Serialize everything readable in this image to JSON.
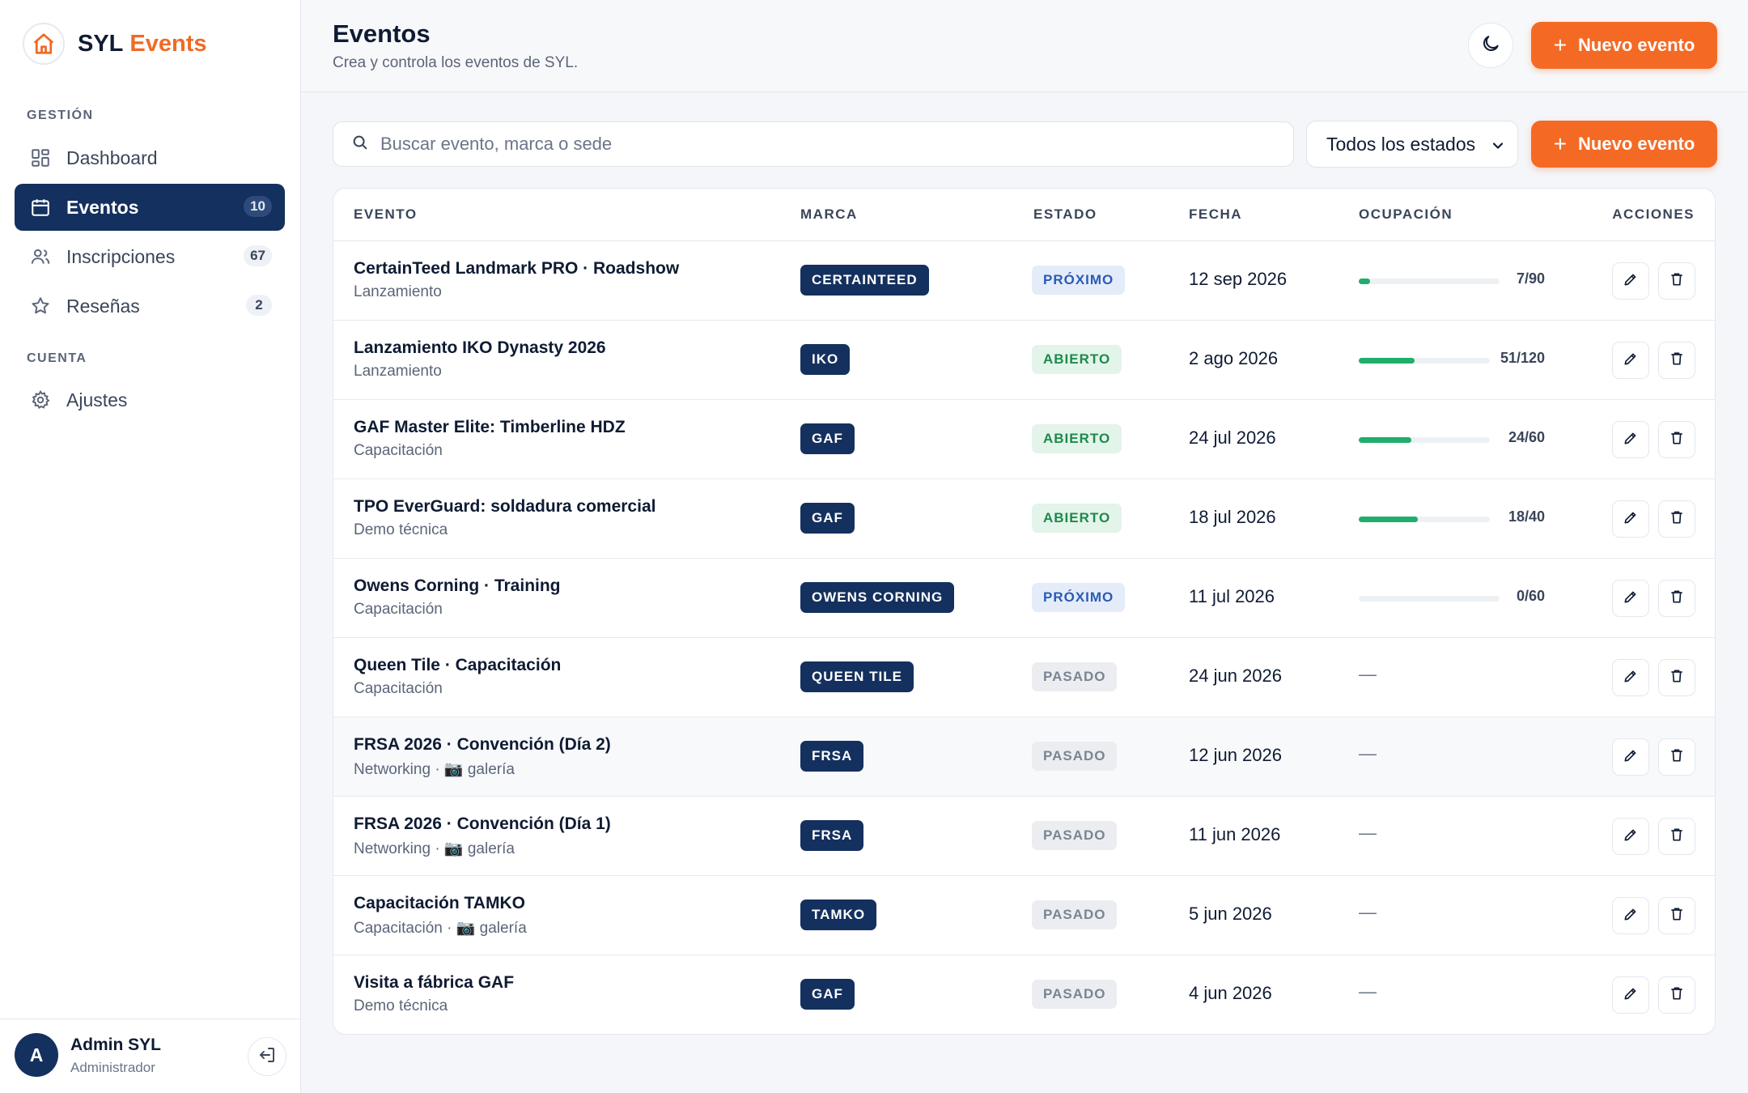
{
  "brand": {
    "name": "SYL",
    "accent": "Events",
    "accent_color": "#f06a24"
  },
  "sidebar": {
    "sections": [
      {
        "label": "GESTIÓN"
      },
      {
        "label": "CUENTA"
      }
    ],
    "items": [
      {
        "label": "Dashboard",
        "icon": "grid-icon"
      },
      {
        "label": "Eventos",
        "icon": "calendar-icon",
        "badge": "10",
        "active": true
      },
      {
        "label": "Inscripciones",
        "icon": "users-icon",
        "badge": "67"
      },
      {
        "label": "Reseñas",
        "icon": "star-icon",
        "badge": "2"
      },
      {
        "label": "Ajustes",
        "icon": "gear-icon"
      }
    ],
    "user": {
      "initial": "A",
      "name": "Admin SYL",
      "role": "Administrador"
    }
  },
  "header": {
    "title": "Eventos",
    "subtitle": "Crea y controla los eventos de SYL.",
    "new_event_label": "Nuevo evento"
  },
  "toolbar": {
    "search_placeholder": "Buscar evento, marca o sede",
    "status_filter": "Todos los estados",
    "new_event_label": "Nuevo evento"
  },
  "table": {
    "columns": [
      "EVENTO",
      "MARCA",
      "ESTADO",
      "FECHA",
      "OCUPACIÓN",
      "ACCIONES"
    ],
    "rows": [
      {
        "name": "CertainTeed Landmark PRO · Roadshow",
        "type": "Lanzamiento",
        "brand": "CERTAINTEED",
        "status": "PRÓXIMO",
        "status_kind": "proximo",
        "date": "12 sep 2026",
        "occ": "7/90",
        "occ_pct": 7.8
      },
      {
        "name": "Lanzamiento IKO Dynasty 2026",
        "type": "Lanzamiento",
        "brand": "IKO",
        "status": "ABIERTO",
        "status_kind": "abierto",
        "date": "2 ago 2026",
        "occ": "51/120",
        "occ_pct": 42.5
      },
      {
        "name": "GAF Master Elite: Timberline HDZ",
        "type": "Capacitación",
        "brand": "GAF",
        "status": "ABIERTO",
        "status_kind": "abierto",
        "date": "24 jul 2026",
        "occ": "24/60",
        "occ_pct": 40
      },
      {
        "name": "TPO EverGuard: soldadura comercial",
        "type": "Demo técnica",
        "brand": "GAF",
        "status": "ABIERTO",
        "status_kind": "abierto",
        "date": "18 jul 2026",
        "occ": "18/40",
        "occ_pct": 45
      },
      {
        "name": "Owens Corning · Training",
        "type": "Capacitación",
        "brand": "OWENS CORNING",
        "status": "PRÓXIMO",
        "status_kind": "proximo",
        "date": "11 jul 2026",
        "occ": "0/60",
        "occ_pct": 0
      },
      {
        "name": "Queen Tile · Capacitación",
        "type": "Capacitación",
        "brand": "QUEEN TILE",
        "status": "PASADO",
        "status_kind": "pasado",
        "date": "24 jun 2026",
        "occ": "—"
      },
      {
        "name": "FRSA 2026 · Convención (Día 2)",
        "type": "Networking · 📷 galería",
        "brand": "FRSA",
        "status": "PASADO",
        "status_kind": "pasado",
        "date": "12 jun 2026",
        "occ": "—",
        "alt": true
      },
      {
        "name": "FRSA 2026 · Convención (Día 1)",
        "type": "Networking · 📷 galería",
        "brand": "FRSA",
        "status": "PASADO",
        "status_kind": "pasado",
        "date": "11 jun 2026",
        "occ": "—"
      },
      {
        "name": "Capacitación TAMKO",
        "type": "Capacitación · 📷 galería",
        "brand": "TAMKO",
        "status": "PASADO",
        "status_kind": "pasado",
        "date": "5 jun 2026",
        "occ": "—"
      },
      {
        "name": "Visita a fábrica GAF",
        "type": "Demo técnica",
        "brand": "GAF",
        "status": "PASADO",
        "status_kind": "pasado",
        "date": "4 jun 2026",
        "occ": "—"
      }
    ]
  }
}
